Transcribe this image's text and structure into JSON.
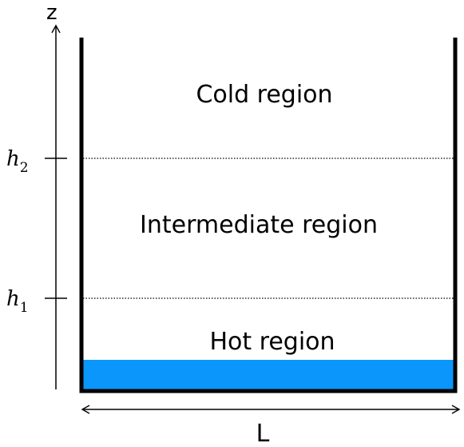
{
  "axis": {
    "z_label": "z",
    "width_label": "L"
  },
  "levels": [
    {
      "symbol": "h",
      "subscript": "2"
    },
    {
      "symbol": "h",
      "subscript": "1"
    }
  ],
  "regions": {
    "cold": "Cold region",
    "intermediate": "Intermediate region",
    "hot": "Hot region"
  },
  "colors": {
    "liquid": "#0A96FA",
    "wall": "#000000"
  }
}
